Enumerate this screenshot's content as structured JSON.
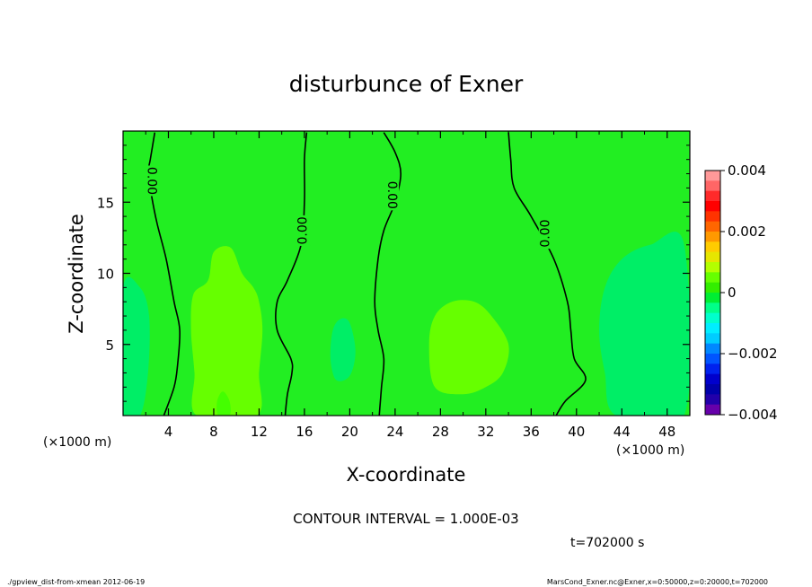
{
  "chart_data": {
    "type": "heatmap",
    "title": "disturbunce of Exner",
    "xlabel": "X-coordinate",
    "ylabel": "Z-coordinate",
    "x_unit": "(×1000 m)",
    "y_unit": "(×1000 m)",
    "xlim": [
      0,
      50
    ],
    "ylim": [
      0,
      20
    ],
    "x_ticks": [
      4,
      8,
      12,
      16,
      20,
      24,
      28,
      32,
      36,
      40,
      44,
      48
    ],
    "y_ticks": [
      5,
      10,
      15
    ],
    "contour_interval_text": "CONTOUR INTERVAL = 1.000E-03",
    "time_text": "t=702000 s",
    "footer_left": "./gpview_dist-from-xmean  2012-06-19",
    "footer_right": "MarsCond_Exner.nc@Exner,x=0:50000,z=0:20000,t=702000",
    "colorbar": {
      "min": -0.004,
      "max": 0.004,
      "tick_values": [
        0.004,
        0.002,
        0,
        -0.002,
        -0.004
      ],
      "tick_labels": [
        "0.004",
        "0.002",
        "0",
        "−0.002",
        "−0.004"
      ],
      "colors_top_to_bottom": [
        "#ff9999",
        "#ff6666",
        "#ff2a2a",
        "#ff0000",
        "#ff3300",
        "#ff6600",
        "#ff9900",
        "#ffcc00",
        "#e6e600",
        "#b3ff00",
        "#66ff00",
        "#33ee00",
        "#00ee33",
        "#00ff88",
        "#00ffcc",
        "#00eeff",
        "#00ccff",
        "#0088ff",
        "#0055ff",
        "#0022ee",
        "#0000cc",
        "#0000aa",
        "#2200aa",
        "#6600aa"
      ]
    },
    "background_color": "#22ee22",
    "zero_contours": [
      {
        "label": "0.00",
        "label_at": [
          2.5,
          16.5
        ],
        "points": [
          [
            2.8,
            19.9
          ],
          [
            2.4,
            18
          ],
          [
            2.2,
            17
          ],
          [
            2.5,
            15.5
          ],
          [
            3,
            13.5
          ],
          [
            3.8,
            11
          ],
          [
            4.5,
            8
          ],
          [
            5,
            6
          ],
          [
            4.8,
            3.5
          ],
          [
            4.5,
            2
          ],
          [
            3.6,
            0
          ]
        ]
      },
      {
        "label": "0.00",
        "label_at": [
          15.9,
          13
        ],
        "points": [
          [
            16.2,
            19.9
          ],
          [
            16,
            18
          ],
          [
            16,
            15
          ],
          [
            15.7,
            12
          ],
          [
            14.5,
            9.5
          ],
          [
            13.6,
            8
          ],
          [
            13.6,
            6
          ],
          [
            14.8,
            4
          ],
          [
            14.9,
            3
          ],
          [
            14.5,
            1.5
          ],
          [
            14.3,
            0
          ]
        ]
      },
      {
        "label": "0.00",
        "label_at": [
          23.7,
          15.5
        ],
        "points": [
          [
            23,
            19.9
          ],
          [
            24,
            18.5
          ],
          [
            24.5,
            17
          ],
          [
            24,
            15
          ],
          [
            23,
            13
          ],
          [
            22.5,
            11
          ],
          [
            22.2,
            8
          ],
          [
            22.5,
            6
          ],
          [
            23,
            4
          ],
          [
            22.8,
            2
          ],
          [
            22.6,
            0
          ]
        ]
      },
      {
        "label": "0.00",
        "label_at": [
          37.3,
          12.8
        ],
        "points": [
          [
            34,
            19.9
          ],
          [
            34.2,
            18
          ],
          [
            34.5,
            16
          ],
          [
            36,
            14
          ],
          [
            38,
            11
          ],
          [
            39.2,
            8
          ],
          [
            39.5,
            6
          ],
          [
            39.8,
            4
          ],
          [
            40.8,
            2.5
          ],
          [
            39,
            1
          ],
          [
            38.2,
            0
          ]
        ]
      }
    ],
    "regions": [
      {
        "name": "positive-lobe-left",
        "color": "#66ff00",
        "points": [
          [
            6.5,
            0
          ],
          [
            6.3,
            3
          ],
          [
            6,
            6
          ],
          [
            6.2,
            8.5
          ],
          [
            7.5,
            9.5
          ],
          [
            8,
            11.5
          ],
          [
            9.5,
            11.8
          ],
          [
            10.5,
            10
          ],
          [
            11.5,
            9
          ],
          [
            12,
            8
          ],
          [
            12.3,
            6
          ],
          [
            12,
            3
          ],
          [
            11.8,
            0
          ]
        ]
      },
      {
        "name": "positive-lobe-center",
        "color": "#66ff00",
        "points": [
          [
            27.5,
            2
          ],
          [
            27,
            5
          ],
          [
            27.5,
            7
          ],
          [
            29,
            8
          ],
          [
            31,
            8
          ],
          [
            32.5,
            7
          ],
          [
            34,
            5
          ],
          [
            33.5,
            3
          ],
          [
            32,
            2
          ],
          [
            30,
            1.5
          ]
        ]
      },
      {
        "name": "negative-lobe-right",
        "color": "#00ee66",
        "points": [
          [
            43.5,
            0
          ],
          [
            42.5,
            3
          ],
          [
            42,
            6
          ],
          [
            42.5,
            9
          ],
          [
            44,
            11
          ],
          [
            46.5,
            12
          ],
          [
            49.5,
            12
          ],
          [
            49.5,
            0
          ]
        ]
      },
      {
        "name": "negative-lobe-left",
        "color": "#00ee66",
        "points": [
          [
            0,
            0
          ],
          [
            0,
            9
          ],
          [
            1.5,
            9
          ],
          [
            2.3,
            7
          ],
          [
            2.2,
            3
          ],
          [
            1.5,
            0
          ]
        ]
      },
      {
        "name": "negative-spot-center",
        "color": "#00ee66",
        "points": [
          [
            18.5,
            6
          ],
          [
            18.3,
            4
          ],
          [
            18.8,
            2.5
          ],
          [
            20,
            2.8
          ],
          [
            20.5,
            4.5
          ],
          [
            20,
            6.5
          ],
          [
            19.2,
            6.8
          ]
        ]
      },
      {
        "name": "positive-spot-bottom",
        "color": "#44ff00",
        "points": [
          [
            8.4,
            0
          ],
          [
            8.3,
            1
          ],
          [
            8.8,
            1.7
          ],
          [
            9.4,
            1
          ],
          [
            9.4,
            0
          ]
        ]
      }
    ]
  }
}
